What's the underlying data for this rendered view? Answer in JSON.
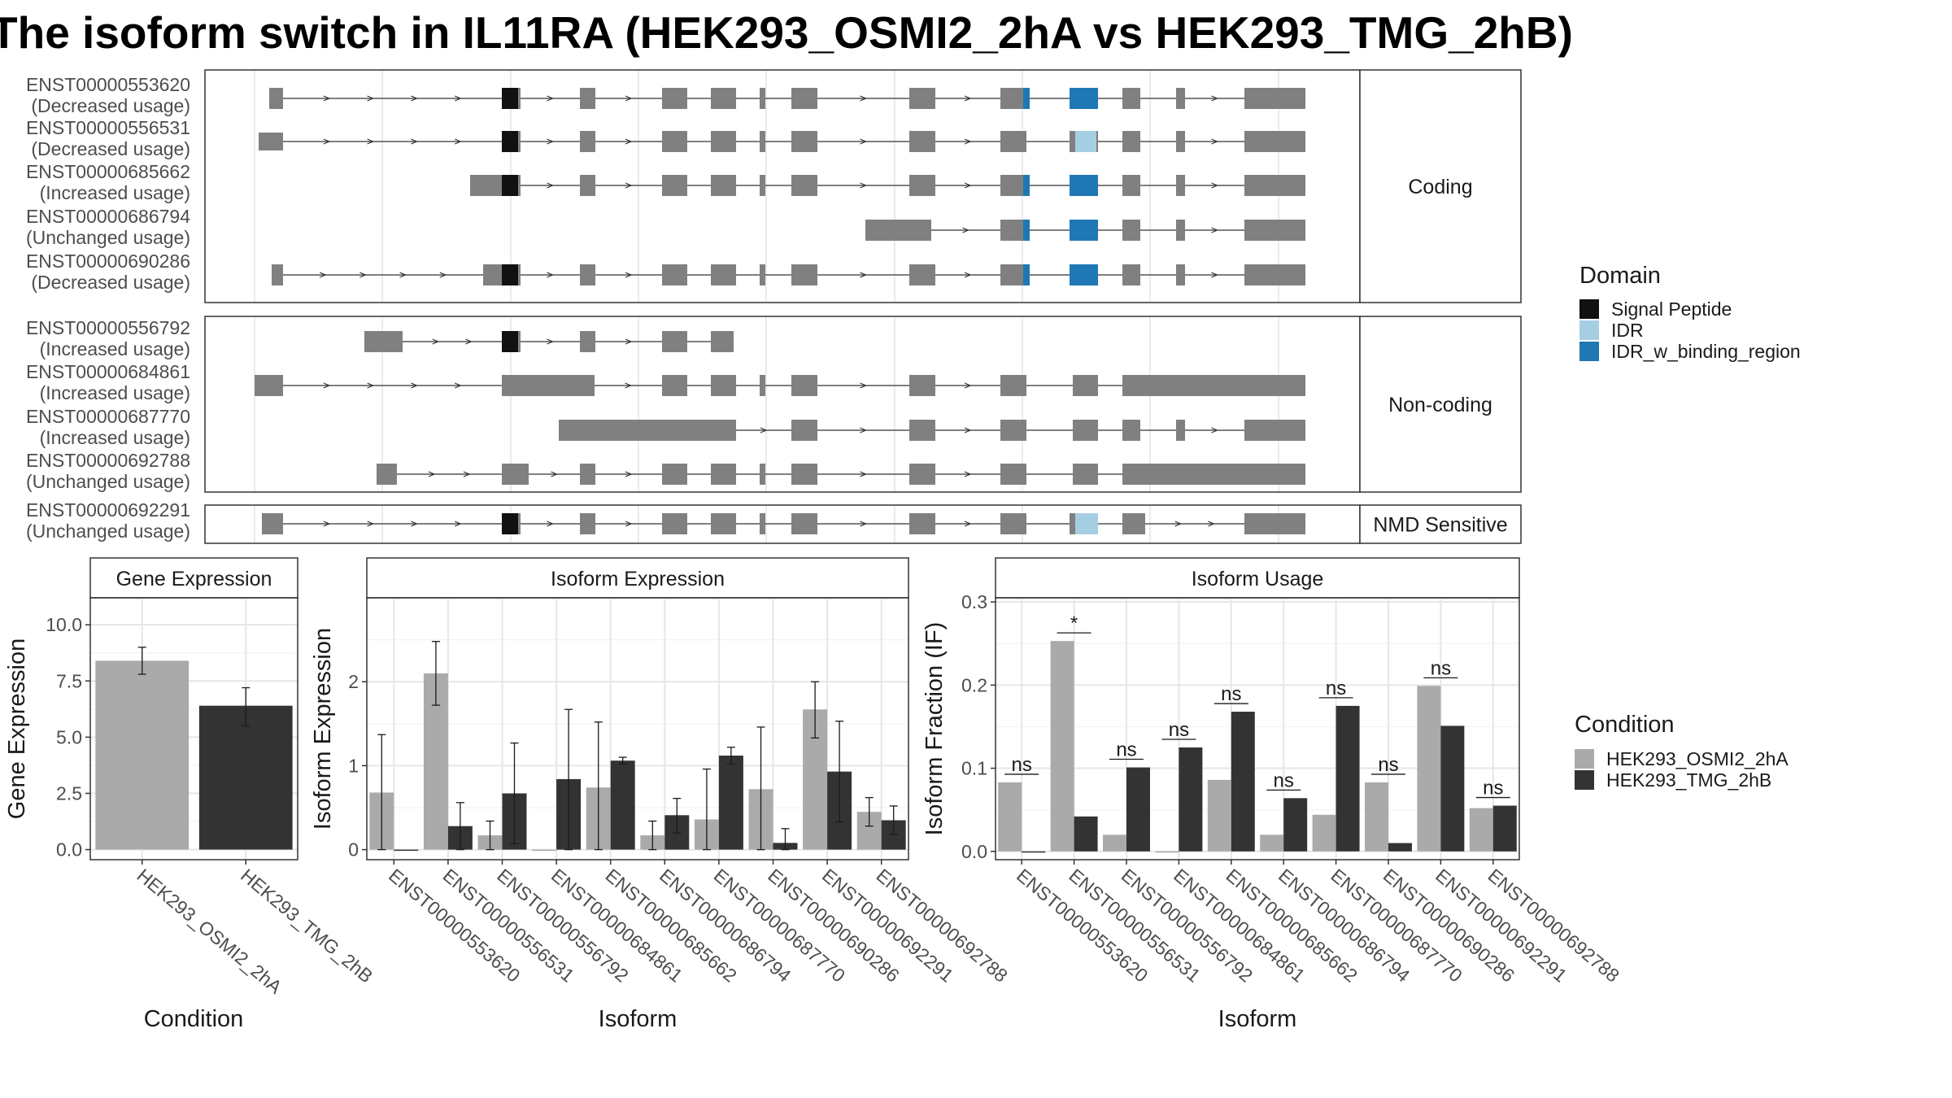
{
  "title": "The isoform switch in IL11RA (HEK293_OSMI2_2hA vs HEK293_TMG_2hB)",
  "colors": {
    "exon": "#808080",
    "signal_peptide": "#111111",
    "idr": "#a6cee3",
    "idr_binding": "#1f78b4",
    "cond_a": "#aaaaaa",
    "cond_b": "#333333"
  },
  "domain_legend": {
    "title": "Domain",
    "items": [
      {
        "label": "Signal Peptide",
        "color": "#111111"
      },
      {
        "label": "IDR",
        "color": "#a6cee3"
      },
      {
        "label": "IDR_w_binding_region",
        "color": "#1f78b4"
      }
    ]
  },
  "condition_legend": {
    "title": "Condition",
    "items": [
      {
        "label": "HEK293_OSMI2_2hA",
        "color": "#aaaaaa"
      },
      {
        "label": "HEK293_TMG_2hB",
        "color": "#333333"
      }
    ]
  },
  "structure": {
    "facets": [
      "Coding",
      "Non-coding",
      "NMD Sensitive"
    ],
    "transcripts": [
      {
        "id": "ENST00000553620",
        "usage": "(Decreased usage)",
        "facet": "Coding"
      },
      {
        "id": "ENST00000556531",
        "usage": "(Decreased usage)",
        "facet": "Coding"
      },
      {
        "id": "ENST00000685662",
        "usage": "(Increased usage)",
        "facet": "Coding"
      },
      {
        "id": "ENST00000686794",
        "usage": "(Unchanged usage)",
        "facet": "Coding"
      },
      {
        "id": "ENST00000690286",
        "usage": "(Decreased usage)",
        "facet": "Coding"
      },
      {
        "id": "ENST00000556792",
        "usage": "(Increased usage)",
        "facet": "Non-coding"
      },
      {
        "id": "ENST00000684861",
        "usage": "(Increased usage)",
        "facet": "Non-coding"
      },
      {
        "id": "ENST00000687770",
        "usage": "(Increased usage)",
        "facet": "Non-coding"
      },
      {
        "id": "ENST00000692788",
        "usage": "(Unchanged usage)",
        "facet": "Non-coding"
      },
      {
        "id": "ENST00000692291",
        "usage": "(Unchanged usage)",
        "facet": "NMD Sensitive"
      }
    ]
  },
  "chart_data": [
    {
      "type": "bar",
      "title": "Gene Expression",
      "xlabel": "Condition",
      "ylabel": "Gene Expression",
      "categories": [
        "HEK293_OSMI2_2hA",
        "HEK293_TMG_2hB"
      ],
      "values": [
        8.4,
        6.4
      ],
      "error_low": [
        7.8,
        5.5
      ],
      "error_high": [
        9.0,
        7.2
      ],
      "ylim": [
        -0.45,
        11.2
      ],
      "yticks": [
        "0.0",
        "2.5",
        "5.0",
        "7.5",
        "10.0"
      ]
    },
    {
      "type": "bar",
      "title": "Isoform Expression",
      "xlabel": "Isoform",
      "ylabel": "Isoform Expression",
      "categories": [
        "ENST00000553620",
        "ENST00000556531",
        "ENST00000556792",
        "ENST00000684861",
        "ENST00000685662",
        "ENST00000686794",
        "ENST00000687770",
        "ENST00000690286",
        "ENST00000692291",
        "ENST00000692788"
      ],
      "series": [
        {
          "name": "HEK293_OSMI2_2hA",
          "values": [
            0.68,
            2.1,
            0.17,
            0.0,
            0.74,
            0.17,
            0.36,
            0.72,
            1.67,
            0.45
          ],
          "error_low": [
            0.0,
            1.72,
            0.0,
            0.0,
            0.0,
            0.0,
            0.0,
            0.0,
            1.33,
            0.28
          ],
          "error_high": [
            1.37,
            2.48,
            0.34,
            0.0,
            1.52,
            0.34,
            0.96,
            1.46,
            2.0,
            0.62
          ]
        },
        {
          "name": "HEK293_TMG_2hB",
          "values": [
            0.0,
            0.28,
            0.67,
            0.84,
            1.06,
            0.41,
            1.12,
            0.08,
            0.93,
            0.35
          ],
          "error_low": [
            0.0,
            0.0,
            0.07,
            0.0,
            1.02,
            0.2,
            1.02,
            0.0,
            0.33,
            0.18
          ],
          "error_high": [
            0.0,
            0.56,
            1.27,
            1.67,
            1.1,
            0.61,
            1.22,
            0.25,
            1.53,
            0.52
          ]
        }
      ],
      "ylim": [
        -0.12,
        3.0
      ],
      "yticks": [
        "0",
        "1",
        "2"
      ]
    },
    {
      "type": "bar",
      "title": "Isoform Usage",
      "xlabel": "Isoform",
      "ylabel": "Isoform Fraction (IF)",
      "categories": [
        "ENST00000553620",
        "ENST00000556531",
        "ENST00000556792",
        "ENST00000684861",
        "ENST00000685662",
        "ENST00000686794",
        "ENST00000687770",
        "ENST00000690286",
        "ENST00000692291",
        "ENST00000692788"
      ],
      "series": [
        {
          "name": "HEK293_OSMI2_2hA",
          "values": [
            0.083,
            0.253,
            0.02,
            0.0,
            0.086,
            0.02,
            0.044,
            0.083,
            0.199,
            0.052
          ]
        },
        {
          "name": "HEK293_TMG_2hB",
          "values": [
            0.0,
            0.042,
            0.101,
            0.125,
            0.168,
            0.064,
            0.175,
            0.01,
            0.151,
            0.055
          ]
        }
      ],
      "significance": [
        "ns",
        "*",
        "ns",
        "ns",
        "ns",
        "ns",
        "ns",
        "ns",
        "ns",
        "ns"
      ],
      "ylim": [
        -0.01,
        0.305
      ],
      "yticks": [
        "0.0",
        "0.1",
        "0.2",
        "0.3"
      ]
    }
  ]
}
